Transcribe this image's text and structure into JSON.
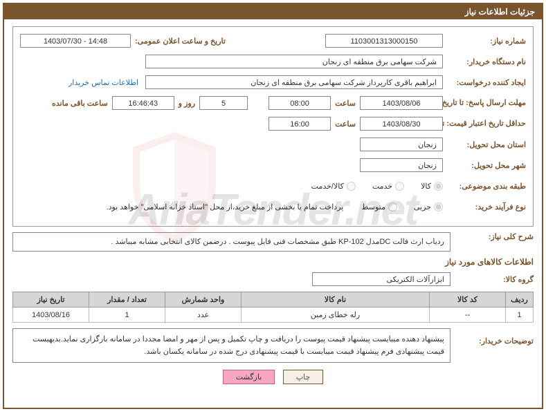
{
  "header": {
    "title": "جزئیات اطلاعات نیاز"
  },
  "fields": {
    "need_no_label": "شماره نیاز:",
    "need_no": "1103001313000150",
    "announce_label": "تاریخ و ساعت اعلان عمومی:",
    "announce_val": "1403/07/30 - 14:48",
    "buyer_org_label": "نام دستگاه خریدار:",
    "buyer_org": "شرکت سهامی برق منطقه ای زنجان",
    "requester_label": "ایجاد کننده درخواست:",
    "requester": "ابراهیم باقری کارپرداز شرکت سهامی برق منطقه ای زنجان",
    "contact_link": "اطلاعات تماس خریدار",
    "deadline_label": "مهلت ارسال پاسخ: تا تاریخ:",
    "deadline_date": "1403/08/06",
    "time_label": "ساعت",
    "deadline_time": "08:00",
    "days_count": "5",
    "days_label": "روز و",
    "remain_time": "16:46:43",
    "remain_label": "ساعت باقی مانده",
    "validity_label": "حداقل تاریخ اعتبار قیمت: تا تاریخ:",
    "validity_date": "1403/08/30",
    "validity_time": "16:00",
    "province_label": "استان محل تحویل:",
    "province": "زنجان",
    "city_label": "شهر محل تحویل:",
    "city": "زنجان",
    "category_label": "طبقه بندی موضوعی:",
    "process_label": "نوع فرآیند خرید:",
    "process_note": "پرداخت تمام یا بخشی از مبلغ خرید،از محل \"اسناد خزانه اسلامی\" خواهد بود."
  },
  "radios_category": [
    {
      "label": "کالا",
      "checked": true
    },
    {
      "label": "خدمت",
      "checked": false
    },
    {
      "label": "کالا/خدمت",
      "checked": false
    }
  ],
  "radios_process": [
    {
      "label": "جزیی",
      "checked": true
    },
    {
      "label": "متوسط",
      "checked": false
    }
  ],
  "summary": {
    "label": "شرح کلی نیاز:",
    "text": "ردیاب ارث فالت DCمدل KP-102 طبق مشخصات فنی فایل پیوست . درضمن کالای انتخابی مشابه میباشد ."
  },
  "goods_section_title": "اطلاعات کالاهای مورد نیاز",
  "goods_group": {
    "label": "گروه کالا:",
    "value": "ابزارآلات الکتریکی"
  },
  "table": {
    "headers": [
      "ردیف",
      "کد کالا",
      "نام کالا",
      "واحد شمارش",
      "تعداد / مقدار",
      "تاریخ نیاز"
    ],
    "rows": [
      [
        "1",
        "--",
        "رله خطای زمین",
        "عدد",
        "1",
        "1403/08/16"
      ]
    ]
  },
  "buyer_notes": {
    "label": "توضیحات خریدار:",
    "text": "پیشنهاد دهنده میبایست پیشنهاد قیمت پیوست را دریافت و چاپ تکمیل و  پس از مهر و امضا مجددا در سامانه بارگزاری نماید.بدیهیست قیمت پیشنهادی فرم پیشنهاد قیمت میبایست با قیمت پیشنهادی درج شده در سامانه یکسان باشد."
  },
  "buttons": {
    "print": "چاپ",
    "back": "بازگشت"
  },
  "watermark": "AriaTender.net",
  "colors": {
    "primary": "#7a542f",
    "link": "#1a6fb0",
    "header_bg": "#d6d6d6",
    "btn_back_bg": "#f7a8c0"
  }
}
